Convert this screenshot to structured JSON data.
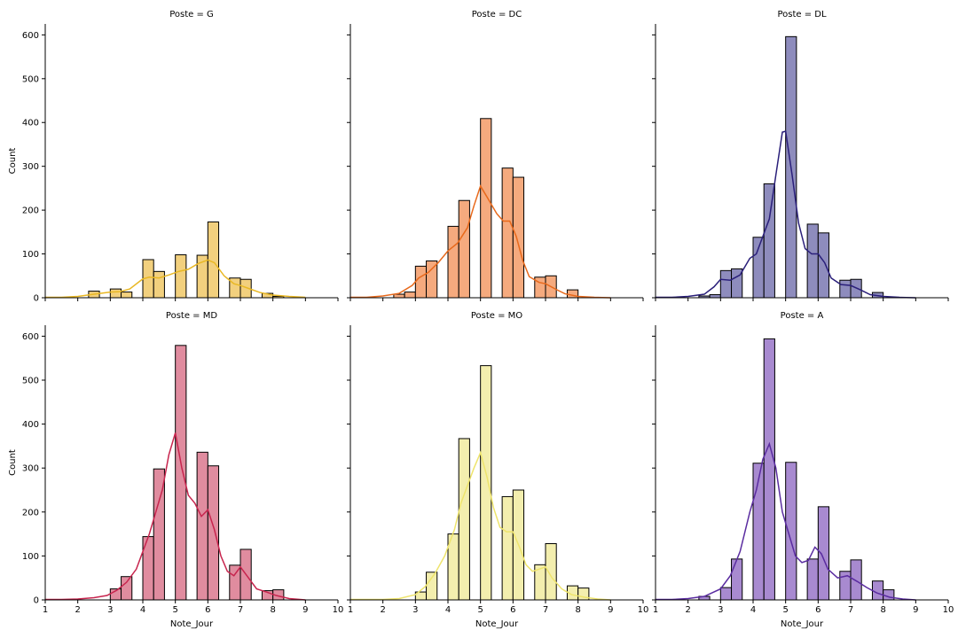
{
  "chart_data": {
    "type": "bar",
    "facet_variable": "Poste",
    "xlabel": "Note_Jour",
    "ylabel": "Count",
    "xlim": [
      1,
      10
    ],
    "ylim": [
      0,
      625
    ],
    "x_ticks": [
      1,
      2,
      3,
      4,
      5,
      6,
      7,
      8,
      9,
      10
    ],
    "y_ticks": [
      0,
      100,
      200,
      300,
      400,
      500,
      600
    ],
    "bin_width": 0.333,
    "bins_start": [
      1.0,
      1.333,
      1.667,
      2.0,
      2.333,
      2.667,
      3.0,
      3.333,
      3.667,
      4.0,
      4.333,
      4.667,
      5.0,
      5.333,
      5.667,
      6.0,
      6.333,
      6.667,
      7.0,
      7.333,
      7.667,
      8.0,
      8.333,
      8.667
    ],
    "kde_overlay": true,
    "grid": false,
    "legend": "none",
    "panels": [
      {
        "title": "Poste = G",
        "fill_color": "#f2d07e",
        "line_color": "#e9b824",
        "counts": [
          0,
          0,
          0,
          0,
          15,
          0,
          20,
          13,
          0,
          87,
          60,
          0,
          98,
          0,
          97,
          173,
          0,
          45,
          42,
          0,
          10,
          3,
          0,
          0
        ],
        "kde": [
          [
            1.0,
            1
          ],
          [
            1.5,
            1
          ],
          [
            2.0,
            3
          ],
          [
            2.5,
            8
          ],
          [
            3.0,
            13
          ],
          [
            3.3,
            14
          ],
          [
            3.6,
            20
          ],
          [
            4.0,
            43
          ],
          [
            4.2,
            47
          ],
          [
            4.5,
            45
          ],
          [
            4.8,
            52
          ],
          [
            5.1,
            60
          ],
          [
            5.4,
            65
          ],
          [
            5.7,
            78
          ],
          [
            6.0,
            86
          ],
          [
            6.2,
            80
          ],
          [
            6.5,
            50
          ],
          [
            6.8,
            32
          ],
          [
            7.0,
            28
          ],
          [
            7.3,
            20
          ],
          [
            7.6,
            12
          ],
          [
            8.0,
            6
          ],
          [
            8.5,
            3
          ],
          [
            9.0,
            1
          ]
        ]
      },
      {
        "title": "Poste = DC",
        "fill_color": "#f5aa7e",
        "line_color": "#e8691b",
        "counts": [
          0,
          0,
          0,
          0,
          8,
          13,
          72,
          84,
          0,
          163,
          222,
          0,
          409,
          0,
          296,
          275,
          0,
          47,
          50,
          0,
          18,
          0,
          0,
          0
        ],
        "kde": [
          [
            1.0,
            1
          ],
          [
            1.5,
            1
          ],
          [
            2.0,
            4
          ],
          [
            2.5,
            10
          ],
          [
            2.9,
            28
          ],
          [
            3.1,
            45
          ],
          [
            3.4,
            58
          ],
          [
            3.7,
            80
          ],
          [
            4.0,
            107
          ],
          [
            4.3,
            125
          ],
          [
            4.6,
            160
          ],
          [
            4.8,
            210
          ],
          [
            5.0,
            255
          ],
          [
            5.2,
            230
          ],
          [
            5.5,
            192
          ],
          [
            5.7,
            175
          ],
          [
            5.9,
            175
          ],
          [
            6.1,
            140
          ],
          [
            6.3,
            85
          ],
          [
            6.5,
            48
          ],
          [
            6.8,
            35
          ],
          [
            7.0,
            32
          ],
          [
            7.3,
            20
          ],
          [
            7.6,
            9
          ],
          [
            8.0,
            3
          ],
          [
            8.5,
            1
          ],
          [
            9.0,
            0
          ]
        ]
      },
      {
        "title": "Poste = DL",
        "fill_color": "#8e8cbd",
        "line_color": "#2a1f7a",
        "counts": [
          0,
          0,
          0,
          0,
          4,
          7,
          62,
          66,
          0,
          138,
          260,
          0,
          596,
          0,
          168,
          148,
          0,
          40,
          42,
          0,
          12,
          0,
          0,
          0
        ],
        "kde": [
          [
            1.0,
            1
          ],
          [
            1.5,
            1
          ],
          [
            2.0,
            3
          ],
          [
            2.5,
            8
          ],
          [
            2.8,
            25
          ],
          [
            3.0,
            42
          ],
          [
            3.3,
            40
          ],
          [
            3.6,
            52
          ],
          [
            3.9,
            90
          ],
          [
            4.1,
            100
          ],
          [
            4.3,
            140
          ],
          [
            4.5,
            180
          ],
          [
            4.7,
            280
          ],
          [
            4.9,
            378
          ],
          [
            5.0,
            380
          ],
          [
            5.2,
            280
          ],
          [
            5.4,
            170
          ],
          [
            5.6,
            112
          ],
          [
            5.8,
            100
          ],
          [
            6.0,
            100
          ],
          [
            6.2,
            80
          ],
          [
            6.4,
            45
          ],
          [
            6.7,
            30
          ],
          [
            7.0,
            28
          ],
          [
            7.3,
            18
          ],
          [
            7.6,
            7
          ],
          [
            8.0,
            3
          ],
          [
            8.5,
            1
          ],
          [
            9.0,
            0
          ]
        ]
      },
      {
        "title": "Poste = MD",
        "fill_color": "#e08c9f",
        "line_color": "#c7254e",
        "counts": [
          0,
          0,
          0,
          0,
          0,
          0,
          25,
          53,
          0,
          144,
          298,
          0,
          579,
          0,
          336,
          305,
          0,
          79,
          115,
          0,
          21,
          23,
          0,
          0
        ],
        "kde": [
          [
            1.0,
            1
          ],
          [
            1.5,
            1
          ],
          [
            2.0,
            2
          ],
          [
            2.5,
            5
          ],
          [
            2.9,
            10
          ],
          [
            3.2,
            22
          ],
          [
            3.5,
            40
          ],
          [
            3.8,
            70
          ],
          [
            4.0,
            110
          ],
          [
            4.2,
            150
          ],
          [
            4.4,
            200
          ],
          [
            4.6,
            250
          ],
          [
            4.8,
            330
          ],
          [
            5.0,
            380
          ],
          [
            5.2,
            300
          ],
          [
            5.4,
            238
          ],
          [
            5.6,
            220
          ],
          [
            5.8,
            190
          ],
          [
            6.0,
            205
          ],
          [
            6.2,
            160
          ],
          [
            6.4,
            100
          ],
          [
            6.6,
            65
          ],
          [
            6.8,
            55
          ],
          [
            7.0,
            75
          ],
          [
            7.2,
            55
          ],
          [
            7.5,
            25
          ],
          [
            7.8,
            18
          ],
          [
            8.1,
            10
          ],
          [
            8.5,
            3
          ],
          [
            9.0,
            0
          ]
        ]
      },
      {
        "title": "Poste = MO",
        "fill_color": "#f3eeae",
        "line_color": "#eee46c",
        "counts": [
          0,
          0,
          0,
          0,
          0,
          0,
          18,
          63,
          0,
          150,
          367,
          0,
          533,
          0,
          235,
          250,
          0,
          80,
          128,
          0,
          32,
          27,
          0,
          0
        ],
        "kde": [
          [
            1.0,
            1
          ],
          [
            1.5,
            1
          ],
          [
            2.0,
            1
          ],
          [
            2.5,
            3
          ],
          [
            3.0,
            12
          ],
          [
            3.3,
            30
          ],
          [
            3.6,
            60
          ],
          [
            3.9,
            100
          ],
          [
            4.2,
            160
          ],
          [
            4.4,
            220
          ],
          [
            4.6,
            260
          ],
          [
            4.8,
            300
          ],
          [
            5.0,
            335
          ],
          [
            5.2,
            280
          ],
          [
            5.4,
            210
          ],
          [
            5.6,
            165
          ],
          [
            5.8,
            155
          ],
          [
            6.0,
            155
          ],
          [
            6.2,
            120
          ],
          [
            6.4,
            80
          ],
          [
            6.6,
            65
          ],
          [
            6.8,
            70
          ],
          [
            7.0,
            75
          ],
          [
            7.2,
            50
          ],
          [
            7.5,
            25
          ],
          [
            7.8,
            12
          ],
          [
            8.2,
            6
          ],
          [
            8.6,
            2
          ],
          [
            9.0,
            0
          ]
        ]
      },
      {
        "title": "Poste = A",
        "fill_color": "#a88ad0",
        "line_color": "#5a2ca0",
        "counts": [
          0,
          0,
          0,
          0,
          8,
          0,
          28,
          93,
          0,
          311,
          594,
          0,
          313,
          0,
          93,
          212,
          0,
          65,
          91,
          0,
          43,
          23,
          0,
          0
        ],
        "kde": [
          [
            1.0,
            1
          ],
          [
            1.5,
            1
          ],
          [
            2.0,
            3
          ],
          [
            2.5,
            8
          ],
          [
            3.0,
            25
          ],
          [
            3.3,
            55
          ],
          [
            3.6,
            110
          ],
          [
            3.9,
            200
          ],
          [
            4.1,
            250
          ],
          [
            4.3,
            320
          ],
          [
            4.5,
            355
          ],
          [
            4.7,
            300
          ],
          [
            4.9,
            200
          ],
          [
            5.1,
            150
          ],
          [
            5.3,
            100
          ],
          [
            5.5,
            85
          ],
          [
            5.7,
            90
          ],
          [
            5.9,
            120
          ],
          [
            6.1,
            105
          ],
          [
            6.3,
            70
          ],
          [
            6.6,
            50
          ],
          [
            6.9,
            55
          ],
          [
            7.2,
            42
          ],
          [
            7.5,
            28
          ],
          [
            7.8,
            16
          ],
          [
            8.2,
            6
          ],
          [
            8.6,
            2
          ],
          [
            9.0,
            0
          ]
        ]
      }
    ]
  }
}
